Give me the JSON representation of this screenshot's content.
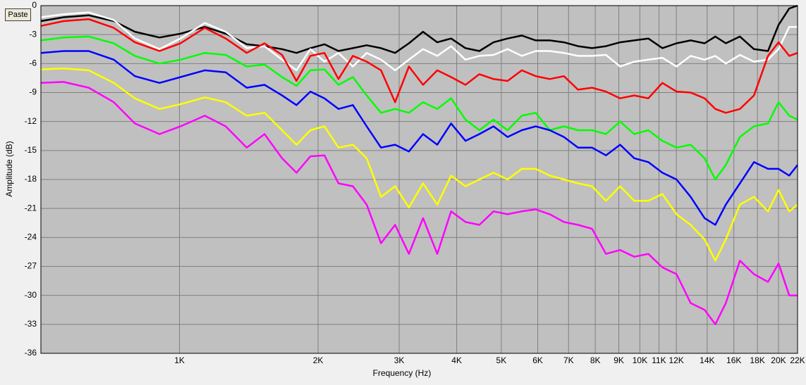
{
  "toolbar": {
    "paste": "Paste"
  },
  "chart_data": {
    "type": "line",
    "xlabel": "Frequency (Hz)",
    "ylabel": "Amplitude (dB)",
    "xscale": "log",
    "grid": true,
    "xlim": [
      500,
      22000
    ],
    "ylim": [
      -36,
      0
    ],
    "xticks": [
      {
        "value": 1000,
        "label": "1K"
      },
      {
        "value": 2000,
        "label": "2K"
      },
      {
        "value": 3000,
        "label": "3K"
      },
      {
        "value": 4000,
        "label": "4K"
      },
      {
        "value": 5000,
        "label": "5K"
      },
      {
        "value": 6000,
        "label": "6K"
      },
      {
        "value": 7000,
        "label": "7K"
      },
      {
        "value": 8000,
        "label": "8K"
      },
      {
        "value": 9000,
        "label": "9K"
      },
      {
        "value": 10000,
        "label": "10K"
      },
      {
        "value": 11000,
        "label": "11K"
      },
      {
        "value": 12000,
        "label": "12K"
      },
      {
        "value": 14000,
        "label": "14K"
      },
      {
        "value": 16000,
        "label": "16K"
      },
      {
        "value": 18000,
        "label": "18K"
      },
      {
        "value": 20000,
        "label": "20K"
      },
      {
        "value": 22000,
        "label": "22K"
      }
    ],
    "yticks": [
      0,
      -3,
      -6,
      -9,
      -12,
      -15,
      -18,
      -21,
      -24,
      -27,
      -30,
      -33,
      -36
    ],
    "x": [
      500,
      560,
      635,
      720,
      800,
      905,
      1005,
      1135,
      1260,
      1400,
      1530,
      1670,
      1795,
      1925,
      2065,
      2215,
      2380,
      2550,
      2740,
      2940,
      3150,
      3380,
      3630,
      3890,
      4180,
      4480,
      4810,
      5160,
      5540,
      5940,
      6370,
      6840,
      7340,
      7870,
      8440,
      9060,
      9720,
      10430,
      11190,
      12010,
      12890,
      13820,
      14580,
      15370,
      16490,
      17690,
      18980,
      20010,
      21100,
      22000
    ],
    "series": [
      {
        "color": "#000000",
        "values": [
          -1.6,
          -1.2,
          -1.0,
          -1.6,
          -2.7,
          -3.3,
          -2.9,
          -2.2,
          -2.9,
          -4.0,
          -4.2,
          -4.5,
          -4.9,
          -4.4,
          -4.0,
          -4.7,
          -4.4,
          -4.1,
          -4.4,
          -4.9,
          -3.9,
          -2.7,
          -3.8,
          -3.4,
          -4.4,
          -4.7,
          -3.8,
          -3.4,
          -3.1,
          -3.6,
          -3.6,
          -3.8,
          -4.2,
          -4.4,
          -4.2,
          -3.8,
          -3.6,
          -3.4,
          -4.4,
          -3.9,
          -3.6,
          -3.9,
          -3.2,
          -3.9,
          -3.2,
          -4.5,
          -4.7,
          -2.0,
          -0.3,
          0
        ]
      },
      {
        "color": "#ffffff",
        "values": [
          -1.2,
          -0.9,
          -0.7,
          -1.5,
          -3.4,
          -4.5,
          -3.4,
          -1.8,
          -2.7,
          -4.4,
          -4.2,
          -5.6,
          -6.7,
          -4.5,
          -5.8,
          -4.9,
          -6.3,
          -4.9,
          -5.6,
          -6.7,
          -5.6,
          -4.5,
          -5.2,
          -4.2,
          -5.6,
          -5.2,
          -5.1,
          -4.5,
          -5.2,
          -4.7,
          -4.7,
          -4.9,
          -5.2,
          -5.2,
          -5.1,
          -6.3,
          -5.8,
          -5.6,
          -5.4,
          -6.3,
          -5.2,
          -5.6,
          -5.2,
          -6.0,
          -5.1,
          -5.8,
          -5.6,
          -4.5,
          -2.2,
          -2.2
        ]
      },
      {
        "color": "#ff0000",
        "values": [
          -2.1,
          -1.6,
          -1.4,
          -2.3,
          -3.8,
          -4.7,
          -3.9,
          -2.3,
          -3.4,
          -4.9,
          -3.9,
          -5.1,
          -7.8,
          -5.2,
          -4.9,
          -7.6,
          -5.2,
          -5.8,
          -6.7,
          -10.0,
          -6.3,
          -8.2,
          -6.7,
          -7.4,
          -8.2,
          -7.1,
          -7.6,
          -7.8,
          -6.7,
          -7.3,
          -7.6,
          -7.3,
          -8.7,
          -8.5,
          -8.9,
          -9.6,
          -9.3,
          -9.6,
          -8.0,
          -8.9,
          -9.0,
          -9.6,
          -10.7,
          -11.1,
          -10.7,
          -9.3,
          -5.2,
          -3.8,
          -5.2,
          -4.9
        ]
      },
      {
        "color": "#00ff00",
        "values": [
          -3.6,
          -3.3,
          -3.2,
          -3.9,
          -5.2,
          -6.0,
          -5.6,
          -4.9,
          -5.1,
          -6.3,
          -6.1,
          -7.4,
          -8.3,
          -6.7,
          -6.6,
          -8.2,
          -7.4,
          -9.3,
          -11.1,
          -10.7,
          -11.1,
          -10.0,
          -10.7,
          -9.6,
          -11.8,
          -12.9,
          -11.8,
          -12.9,
          -11.4,
          -11.1,
          -12.9,
          -12.5,
          -12.9,
          -12.9,
          -13.3,
          -12.0,
          -13.3,
          -12.9,
          -14.0,
          -14.7,
          -14.4,
          -15.8,
          -18.0,
          -16.5,
          -13.6,
          -12.5,
          -12.2,
          -10.0,
          -11.4,
          -11.8
        ]
      },
      {
        "color": "#0000ff",
        "values": [
          -4.9,
          -4.7,
          -4.7,
          -5.6,
          -7.3,
          -8.0,
          -7.4,
          -6.7,
          -6.9,
          -8.5,
          -8.2,
          -9.3,
          -10.3,
          -8.9,
          -9.6,
          -10.7,
          -10.3,
          -12.5,
          -14.7,
          -14.4,
          -15.1,
          -13.3,
          -14.4,
          -12.2,
          -14.0,
          -13.3,
          -12.5,
          -13.6,
          -12.9,
          -12.5,
          -12.9,
          -13.6,
          -14.7,
          -14.7,
          -15.5,
          -14.4,
          -15.8,
          -16.2,
          -17.3,
          -18.0,
          -19.8,
          -22.0,
          -22.7,
          -20.6,
          -18.4,
          -16.2,
          -16.9,
          -16.9,
          -17.6,
          -16.5
        ]
      },
      {
        "color": "#ffff00",
        "values": [
          -6.6,
          -6.5,
          -6.7,
          -8.0,
          -9.6,
          -10.7,
          -10.2,
          -9.5,
          -10.0,
          -11.4,
          -11.1,
          -12.9,
          -14.4,
          -12.9,
          -12.5,
          -14.7,
          -14.4,
          -15.8,
          -19.8,
          -18.7,
          -20.9,
          -18.4,
          -20.6,
          -17.6,
          -18.7,
          -18.0,
          -17.3,
          -18.0,
          -16.9,
          -16.9,
          -17.6,
          -18.0,
          -18.4,
          -18.7,
          -20.2,
          -18.7,
          -20.2,
          -20.2,
          -19.5,
          -21.6,
          -22.7,
          -24.2,
          -26.4,
          -24.2,
          -20.6,
          -19.8,
          -21.3,
          -19.1,
          -21.3,
          -20.6
        ]
      },
      {
        "color": "#ff00ff",
        "values": [
          -8.0,
          -7.9,
          -8.5,
          -10.0,
          -12.2,
          -13.3,
          -12.5,
          -11.4,
          -12.5,
          -14.7,
          -13.3,
          -15.8,
          -17.3,
          -15.6,
          -15.5,
          -18.4,
          -18.7,
          -20.6,
          -24.6,
          -22.7,
          -25.7,
          -22.0,
          -25.7,
          -21.3,
          -22.4,
          -22.7,
          -21.3,
          -21.6,
          -21.3,
          -21.1,
          -21.6,
          -22.4,
          -22.7,
          -23.1,
          -25.7,
          -25.3,
          -26.0,
          -25.7,
          -27.1,
          -27.8,
          -30.8,
          -31.5,
          -33.0,
          -30.8,
          -26.4,
          -27.8,
          -28.6,
          -26.7,
          -30.0,
          -30.0
        ]
      }
    ]
  }
}
